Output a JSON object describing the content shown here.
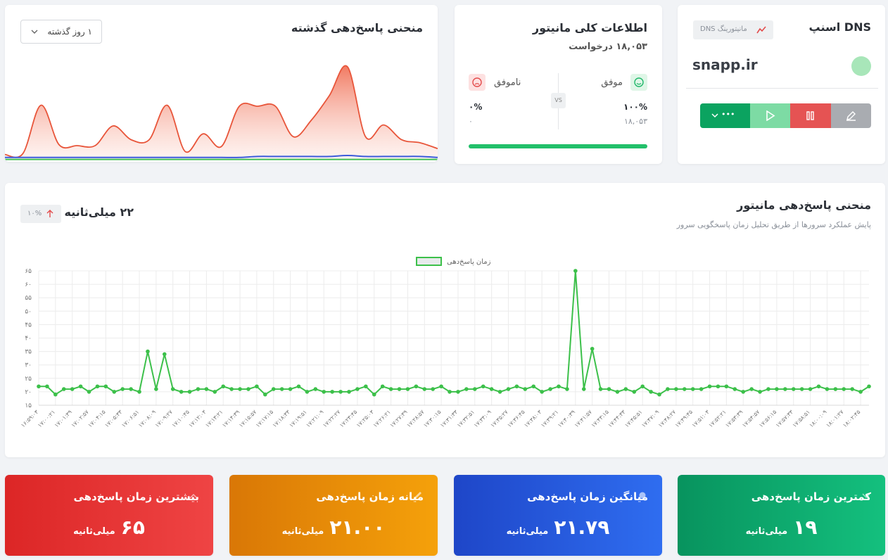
{
  "dns_card": {
    "title": "DNS اسنپ",
    "badge": "مانیتورینگ DNS",
    "host": "snapp.ir",
    "more": "•••"
  },
  "info_card": {
    "title": "اطلاعات کلی مانیتور",
    "requests": "۱۸,۰۵۳ درخواست",
    "success_label": "موفق",
    "fail_label": "ناموفق",
    "vs": "VS",
    "success_percent": "۱۰۰%",
    "success_count": "۱۸,۰۵۳",
    "fail_percent": "۰%",
    "fail_count": "۰",
    "progress": 100
  },
  "history_card": {
    "title": "منحنی پاسخ‌دهی گذشته",
    "range": "۱ روز گذشته"
  },
  "response_card": {
    "title": "منحنی پاسخ‌دهی مانیتور",
    "subtitle": "پایش عملکرد سرورها از طریق تحلیل زمان پاسخگویی سرور",
    "current": "۲۲ میلی‌ثانیه",
    "change": "۱۰%"
  },
  "stats": [
    {
      "title": "کمترین زمان پاسخ‌دهی",
      "value": "۱۹",
      "unit": "میلی‌ثانیه"
    },
    {
      "title": "میانگین زمان پاسخ‌دهی",
      "value": "۲۱.۷۹",
      "unit": "میلی‌ثانیه"
    },
    {
      "title": "میانه زمان پاسخ‌دهی",
      "value": "۲۱.۰۰",
      "unit": "میلی‌ثانیه"
    },
    {
      "title": "بیشترین زمان پاسخ‌دهی",
      "value": "۶۵",
      "unit": "میلی‌ثانیه"
    }
  ],
  "chart_data": [
    {
      "type": "area",
      "ylim": [
        0,
        100
      ],
      "series": [
        {
          "color": "#e8553a",
          "values": [
            6,
            7,
            56,
            16,
            15,
            15,
            35,
            21,
            21,
            56,
            9,
            27,
            14,
            55,
            55,
            55,
            24,
            41,
            66,
            95,
            24,
            36,
            21,
            18,
            12
          ]
        },
        {
          "color": "#3b5bdb",
          "values": [
            3,
            3,
            3,
            3,
            3,
            3,
            3,
            3,
            3,
            3,
            3,
            3,
            3,
            3,
            4,
            4,
            4,
            4,
            4,
            5,
            4,
            4,
            4,
            4,
            3
          ]
        },
        {
          "color": "#40c057",
          "values": [
            1,
            1,
            1,
            1,
            1,
            1,
            1,
            1,
            1,
            1,
            1,
            1,
            1,
            1,
            1,
            1,
            1,
            1,
            1,
            1,
            1,
            1,
            1,
            1,
            1
          ]
        }
      ]
    },
    {
      "type": "line",
      "categories": [
        "۱۶:۵۹:۰۳",
        null,
        "۱۷:۰۰:۲۱",
        null,
        "۱۷:۰۱:۳۹",
        null,
        "۱۷:۰۲:۵۷",
        null,
        "۱۷:۰۴:۱۵",
        null,
        "۱۷:۰۵:۳۳",
        null,
        "۱۷:۰۶:۵۱",
        null,
        "۱۷:۰۸:۰۹",
        null,
        "۱۷:۰۹:۲۷",
        null,
        "۱۷:۱۰:۴۵",
        null,
        "۱۷:۱۲:۰۳",
        null,
        "۱۷:۱۳:۲۱",
        null,
        "۱۷:۱۴:۳۹",
        null,
        "۱۷:۱۵:۵۷",
        null,
        "۱۷:۱۷:۱۵",
        null,
        "۱۷:۱۸:۳۳",
        null,
        "۱۷:۱۹:۵۱",
        null,
        "۱۷:۲۱:۰۹",
        null,
        "۱۷:۲۲:۲۷",
        null,
        "۱۷:۲۳:۴۵",
        null,
        "۱۷:۲۵:۰۳",
        null,
        "۱۷:۲۶:۲۱",
        null,
        "۱۷:۲۷:۳۹",
        null,
        "۱۷:۲۸:۵۷",
        null,
        "۱۷:۳۰:۱۵",
        null,
        "۱۷:۳۱:۳۳",
        null,
        "۱۷:۳۲:۵۱",
        null,
        "۱۷:۳۴:۰۹",
        null,
        "۱۷:۳۵:۲۷",
        null,
        "۱۷:۳۶:۴۵",
        null,
        "۱۷:۳۸:۰۳",
        null,
        "۱۷:۳۹:۲۱",
        null,
        "۱۷:۴۰:۳۹",
        null,
        "۱۷:۴۱:۵۷",
        null,
        "۱۷:۴۳:۱۵",
        null,
        "۱۷:۴۴:۳۳",
        null,
        "۱۷:۴۵:۵۱",
        null,
        "۱۷:۴۷:۰۹",
        null,
        "۱۷:۴۸:۲۷",
        null,
        "۱۷:۴۹:۴۵",
        null,
        "۱۷:۵۱:۰۳",
        null,
        "۱۷:۵۲:۲۱",
        null,
        "۱۷:۵۳:۳۹",
        null,
        "۱۷:۵۴:۵۷",
        null,
        "۱۷:۵۶:۱۵",
        null,
        "۱۷:۵۷:۳۳",
        null,
        "۱۷:۵۸:۵۱",
        null,
        "۱۸:۰۰:۰۹",
        null,
        "۱۸:۰۱:۲۷",
        null,
        "۱۸:۰۲:۴۵",
        null
      ],
      "series": [
        {
          "name": "زمان پاسخ‌دهی",
          "color": "#3cc04a",
          "values": [
            22,
            22,
            19,
            21,
            21,
            22,
            20,
            22,
            22,
            20,
            21,
            21,
            20,
            35,
            21,
            34,
            21,
            20,
            20,
            21,
            21,
            20,
            22,
            21,
            21,
            21,
            22,
            19,
            21,
            21,
            21,
            22,
            20,
            21,
            20,
            20,
            20,
            20,
            21,
            22,
            19,
            22,
            21,
            21,
            21,
            22,
            21,
            21,
            22,
            20,
            20,
            21,
            21,
            22,
            21,
            20,
            21,
            22,
            21,
            22,
            20,
            21,
            22,
            21,
            65,
            21,
            36,
            21,
            21,
            20,
            21,
            20,
            22,
            20,
            19,
            21,
            21,
            21,
            21,
            21,
            22,
            22,
            22,
            21,
            20,
            21,
            20,
            21,
            21,
            21,
            21,
            21,
            21,
            22,
            21,
            21,
            21,
            21,
            20,
            22
          ]
        }
      ],
      "ylim": [
        15,
        65
      ],
      "yticks": [
        {
          "value": 15,
          "label": "۱۵"
        },
        {
          "value": 20,
          "label": "۲۰"
        },
        {
          "value": 25,
          "label": "۲۵"
        },
        {
          "value": 30,
          "label": "۳۰"
        },
        {
          "value": 35,
          "label": "۳۵"
        },
        {
          "value": 40,
          "label": "۴۰"
        },
        {
          "value": 45,
          "label": "۴۵"
        },
        {
          "value": 50,
          "label": "۵۰"
        },
        {
          "value": 55,
          "label": "۵۵"
        },
        {
          "value": 60,
          "label": "۶۰"
        },
        {
          "value": 65,
          "label": "۶۵"
        }
      ],
      "grid": true,
      "legend": "top"
    }
  ]
}
